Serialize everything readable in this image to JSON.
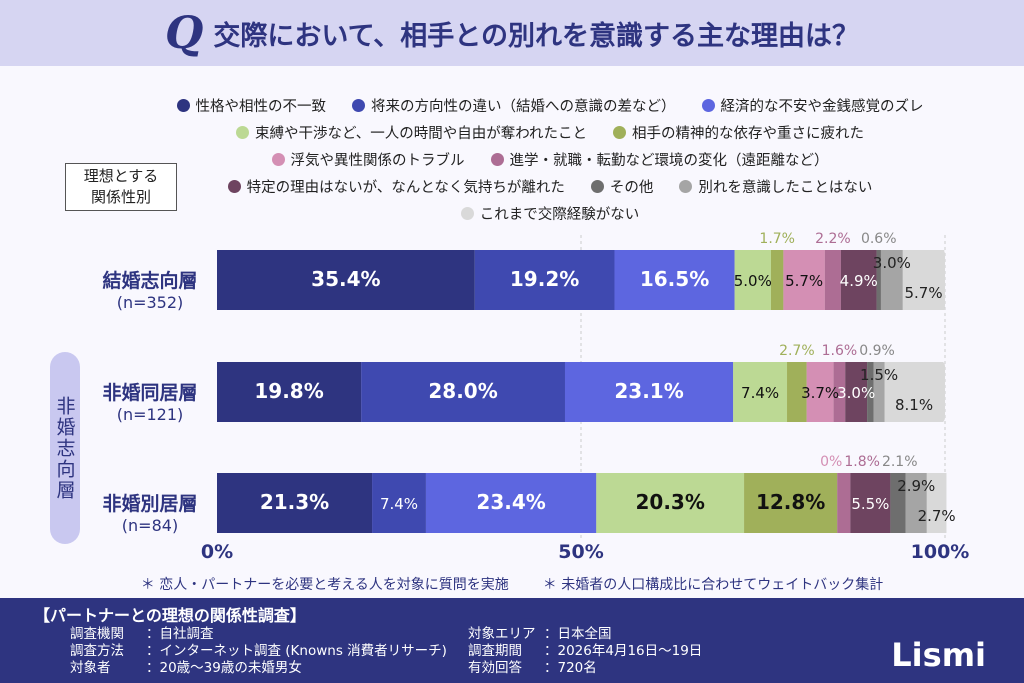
{
  "header": {
    "q": "Q",
    "title": "交際において、相手との別れを意識する主な理由は？"
  },
  "axis_box": {
    "line1": "理想とする",
    "line2": "関係性別"
  },
  "group_label": "非婚志向層",
  "chart_data": {
    "type": "bar",
    "orientation": "horizontal",
    "stacked": true,
    "xlim": [
      0,
      100
    ],
    "x_ticks": [
      "0%",
      "50%",
      "100%"
    ],
    "series": [
      {
        "name": "性格や相性の不一致",
        "color": "#2e3480"
      },
      {
        "name": "将来の方向性の違い（結婚への意識の差など）",
        "color": "#3f49b0"
      },
      {
        "name": "経済的な不安や金銭感覚のズレ",
        "color": "#5d66e0"
      },
      {
        "name": "束縛や干渉など、一人の時間や自由が奪われたこと",
        "color": "#bcd994"
      },
      {
        "name": "相手の精神的な依存や重さに疲れた",
        "color": "#a0b05a"
      },
      {
        "name": "浮気や異性関係のトラブル",
        "color": "#d48fb4"
      },
      {
        "name": "進学・就職・転勤など環境の変化（遠距離など）",
        "color": "#ad6d94"
      },
      {
        "name": "特定の理由はないが、なんとなく気持ちが離れた",
        "color": "#6e4460"
      },
      {
        "name": "その他",
        "color": "#6e6e6e"
      },
      {
        "name": "別れを意識したことはない",
        "color": "#a5a5a5"
      },
      {
        "name": "これまで交際経験がない",
        "color": "#d9d9d9"
      }
    ],
    "categories": [
      {
        "name": "結婚志向層",
        "n": "(n=352)",
        "values": [
          35.4,
          19.2,
          16.5,
          5.0,
          1.7,
          5.7,
          2.2,
          4.9,
          0.6,
          3.0,
          5.7
        ],
        "labels": [
          "35.4%",
          "19.2%",
          "16.5%",
          "5.0%",
          "1.7%",
          "5.7%",
          "2.2%",
          "4.9%",
          "0.6%",
          "3.0%",
          "5.7%"
        ]
      },
      {
        "name": "非婚同居層",
        "n": "(n=121)",
        "values": [
          19.8,
          28.0,
          23.1,
          7.4,
          2.7,
          3.7,
          1.6,
          3.0,
          0.9,
          1.5,
          8.1
        ],
        "labels": [
          "19.8%",
          "28.0%",
          "23.1%",
          "7.4%",
          "2.7%",
          "3.7%",
          "1.6%",
          "3.0%",
          "0.9%",
          "1.5%",
          "8.1%"
        ]
      },
      {
        "name": "非婚別居層",
        "n": "(n=84)",
        "values": [
          21.3,
          7.4,
          23.4,
          20.3,
          12.8,
          0,
          1.8,
          5.5,
          2.1,
          2.9,
          2.7
        ],
        "labels": [
          "21.3%",
          "7.4%",
          "23.4%",
          "20.3%",
          "12.8%",
          "0%",
          "1.8%",
          "5.5%",
          "2.1%",
          "2.9%",
          "2.7%"
        ]
      }
    ]
  },
  "notes": [
    "＊ 恋人・パートナーを必要と考える人を対象に質問を実施",
    "＊ 未婚者の人口構成比に合わせてウェイトバック集計"
  ],
  "footer": {
    "title": "【パートナーとの理想の関係性調査】",
    "left": [
      [
        "調査機関",
        "：自社調査"
      ],
      [
        "調査方法",
        "：インターネット調査 (Knowns 消費者リサーチ)"
      ],
      [
        "対象者",
        "：20歳～39歳の未婚男女"
      ]
    ],
    "right": [
      [
        "対象エリア",
        "：日本全国"
      ],
      [
        "調査期間",
        "：2026年4月16日～19日"
      ],
      [
        "有効回答",
        "：720名"
      ]
    ],
    "logo": "Lismi"
  }
}
